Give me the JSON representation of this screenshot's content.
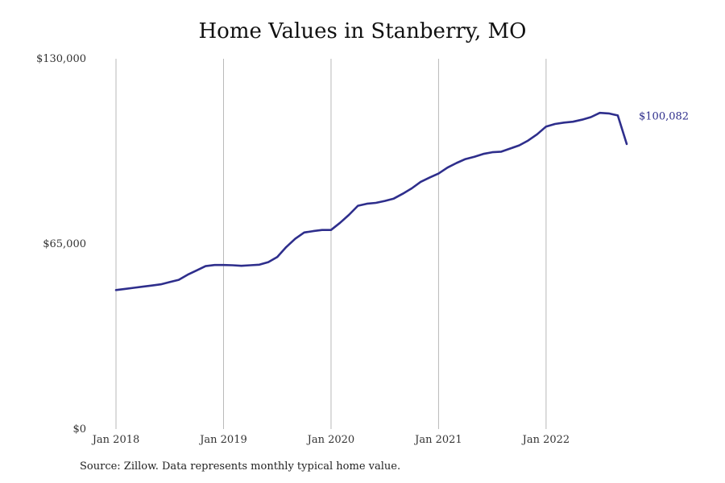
{
  "chart_data": {
    "type": "line",
    "title": "Home Values in Stanberry, MO",
    "xlabel": "",
    "ylabel": "",
    "ylim": [
      0,
      130000
    ],
    "xlim": [
      "2018-01",
      "2022-10"
    ],
    "y_ticks": [
      0,
      65000,
      130000
    ],
    "y_tick_labels": [
      "$0",
      "$65,000",
      "$130,000"
    ],
    "x_ticks": [
      "2018-01",
      "2019-01",
      "2020-01",
      "2021-01",
      "2022-01"
    ],
    "x_tick_labels": [
      "Jan 2018",
      "Jan 2019",
      "Jan 2020",
      "Jan 2021",
      "Jan 2022"
    ],
    "grid": "vertical lines at x ticks",
    "line_color": "#2e2e8c",
    "end_label": "$100,082",
    "series": [
      {
        "x": [
          "2018-01",
          "2018-02",
          "2018-03",
          "2018-04",
          "2018-05",
          "2018-06",
          "2018-07",
          "2018-08",
          "2018-09",
          "2018-10",
          "2018-11",
          "2018-12",
          "2019-01",
          "2019-02",
          "2019-03",
          "2019-04",
          "2019-05",
          "2019-06",
          "2019-07",
          "2019-08",
          "2019-09",
          "2019-10",
          "2019-11",
          "2019-12",
          "2020-01",
          "2020-02",
          "2020-03",
          "2020-04",
          "2020-05",
          "2020-06",
          "2020-07",
          "2020-08",
          "2020-09",
          "2020-10",
          "2020-11",
          "2020-12",
          "2021-01",
          "2021-02",
          "2021-03",
          "2021-04",
          "2021-05",
          "2021-06",
          "2021-07",
          "2021-08",
          "2021-09",
          "2021-10",
          "2021-11",
          "2021-12",
          "2022-01",
          "2022-02",
          "2022-03",
          "2022-04",
          "2022-05",
          "2022-06",
          "2022-07",
          "2022-08",
          "2022-09",
          "2022-10"
        ],
        "values": [
          48800,
          49200,
          49600,
          50000,
          50400,
          50800,
          51600,
          52400,
          54200,
          55700,
          57200,
          57600,
          57600,
          57500,
          57300,
          57500,
          57700,
          58600,
          60400,
          63900,
          66800,
          69000,
          69500,
          69900,
          69900,
          72400,
          75200,
          78400,
          79100,
          79400,
          80100,
          80900,
          82600,
          84500,
          86800,
          88300,
          89700,
          91800,
          93400,
          94800,
          95600,
          96600,
          97200,
          97400,
          98500,
          99600,
          101300,
          103500,
          106200,
          107100,
          107600,
          107900,
          108600,
          109500,
          111000,
          110800,
          110100,
          100082
        ]
      }
    ]
  },
  "source_note": "Source: Zillow. Data represents monthly typical home value."
}
